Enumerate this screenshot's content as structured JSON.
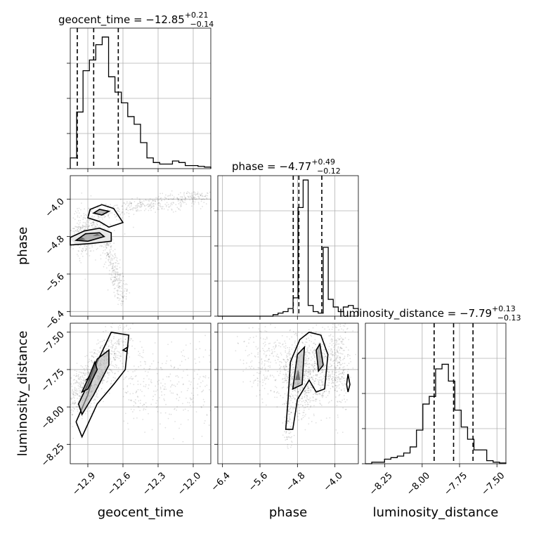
{
  "chart_data": {
    "type": "corner",
    "parameters": [
      "geocent_time",
      "phase",
      "luminosity_distance"
    ],
    "titles": {
      "geocent_time": {
        "label": "geocent_time",
        "median": "−12.85",
        "plus": "+0.21",
        "minus": "−0.14"
      },
      "phase": {
        "label": "phase",
        "median": "−4.77",
        "plus": "+0.49",
        "minus": "−0.12"
      },
      "luminosity_distance": {
        "label": "luminosity_distance",
        "median": "−7.79",
        "plus": "+0.13",
        "minus": "−0.13"
      }
    },
    "ranges": {
      "geocent_time": [
        -13.05,
        -11.85
      ],
      "phase": [
        -6.5,
        -3.5
      ],
      "luminosity_distance": [
        -8.38,
        -7.44
      ]
    },
    "ticks": {
      "geocent_time": {
        "values": [
          -12.9,
          -12.6,
          -12.3,
          -12.0
        ],
        "labels": [
          "−12.9",
          "−12.6",
          "−12.3",
          "−12.0"
        ]
      },
      "phase": {
        "values": [
          -6.4,
          -5.6,
          -4.8,
          -4.0
        ],
        "labels": [
          "−6.4",
          "−5.6",
          "−4.8",
          "−4.0"
        ]
      },
      "luminosity_distance": {
        "values": [
          -8.25,
          -8.0,
          -7.75,
          -7.5
        ],
        "labels": [
          "−8.25",
          "−8.00",
          "−7.75",
          "−7.50"
        ]
      }
    },
    "quantiles": {
      "geocent_time": [
        -12.99,
        -12.85,
        -12.64
      ],
      "phase": [
        -4.89,
        -4.77,
        -4.28
      ],
      "luminosity_distance": [
        -7.92,
        -7.79,
        -7.66
      ]
    },
    "histograms": {
      "geocent_time": [
        0.07,
        0.37,
        0.64,
        0.71,
        0.81,
        0.86,
        0.6,
        0.5,
        0.43,
        0.34,
        0.29,
        0.17,
        0.07,
        0.04,
        0.03,
        0.03,
        0.05,
        0.04,
        0.02,
        0.02,
        0.015,
        0.01
      ],
      "phase": [
        0,
        0,
        0,
        0,
        0,
        0,
        0,
        0,
        0,
        0,
        0,
        0.01,
        0.02,
        0.03,
        0.05,
        0.12,
        0.71,
        0.89,
        0.07,
        0.03,
        0.02,
        0.45,
        0.11,
        0.06,
        0.03,
        0.06,
        0.07,
        0.05
      ],
      "luminosity_distance": [
        0,
        0.01,
        0.01,
        0.03,
        0.04,
        0.05,
        0.07,
        0.11,
        0.22,
        0.39,
        0.44,
        0.62,
        0.65,
        0.54,
        0.35,
        0.24,
        0.16,
        0.09,
        0.09,
        0.02,
        0.01,
        0.005
      ]
    },
    "grid": true
  }
}
